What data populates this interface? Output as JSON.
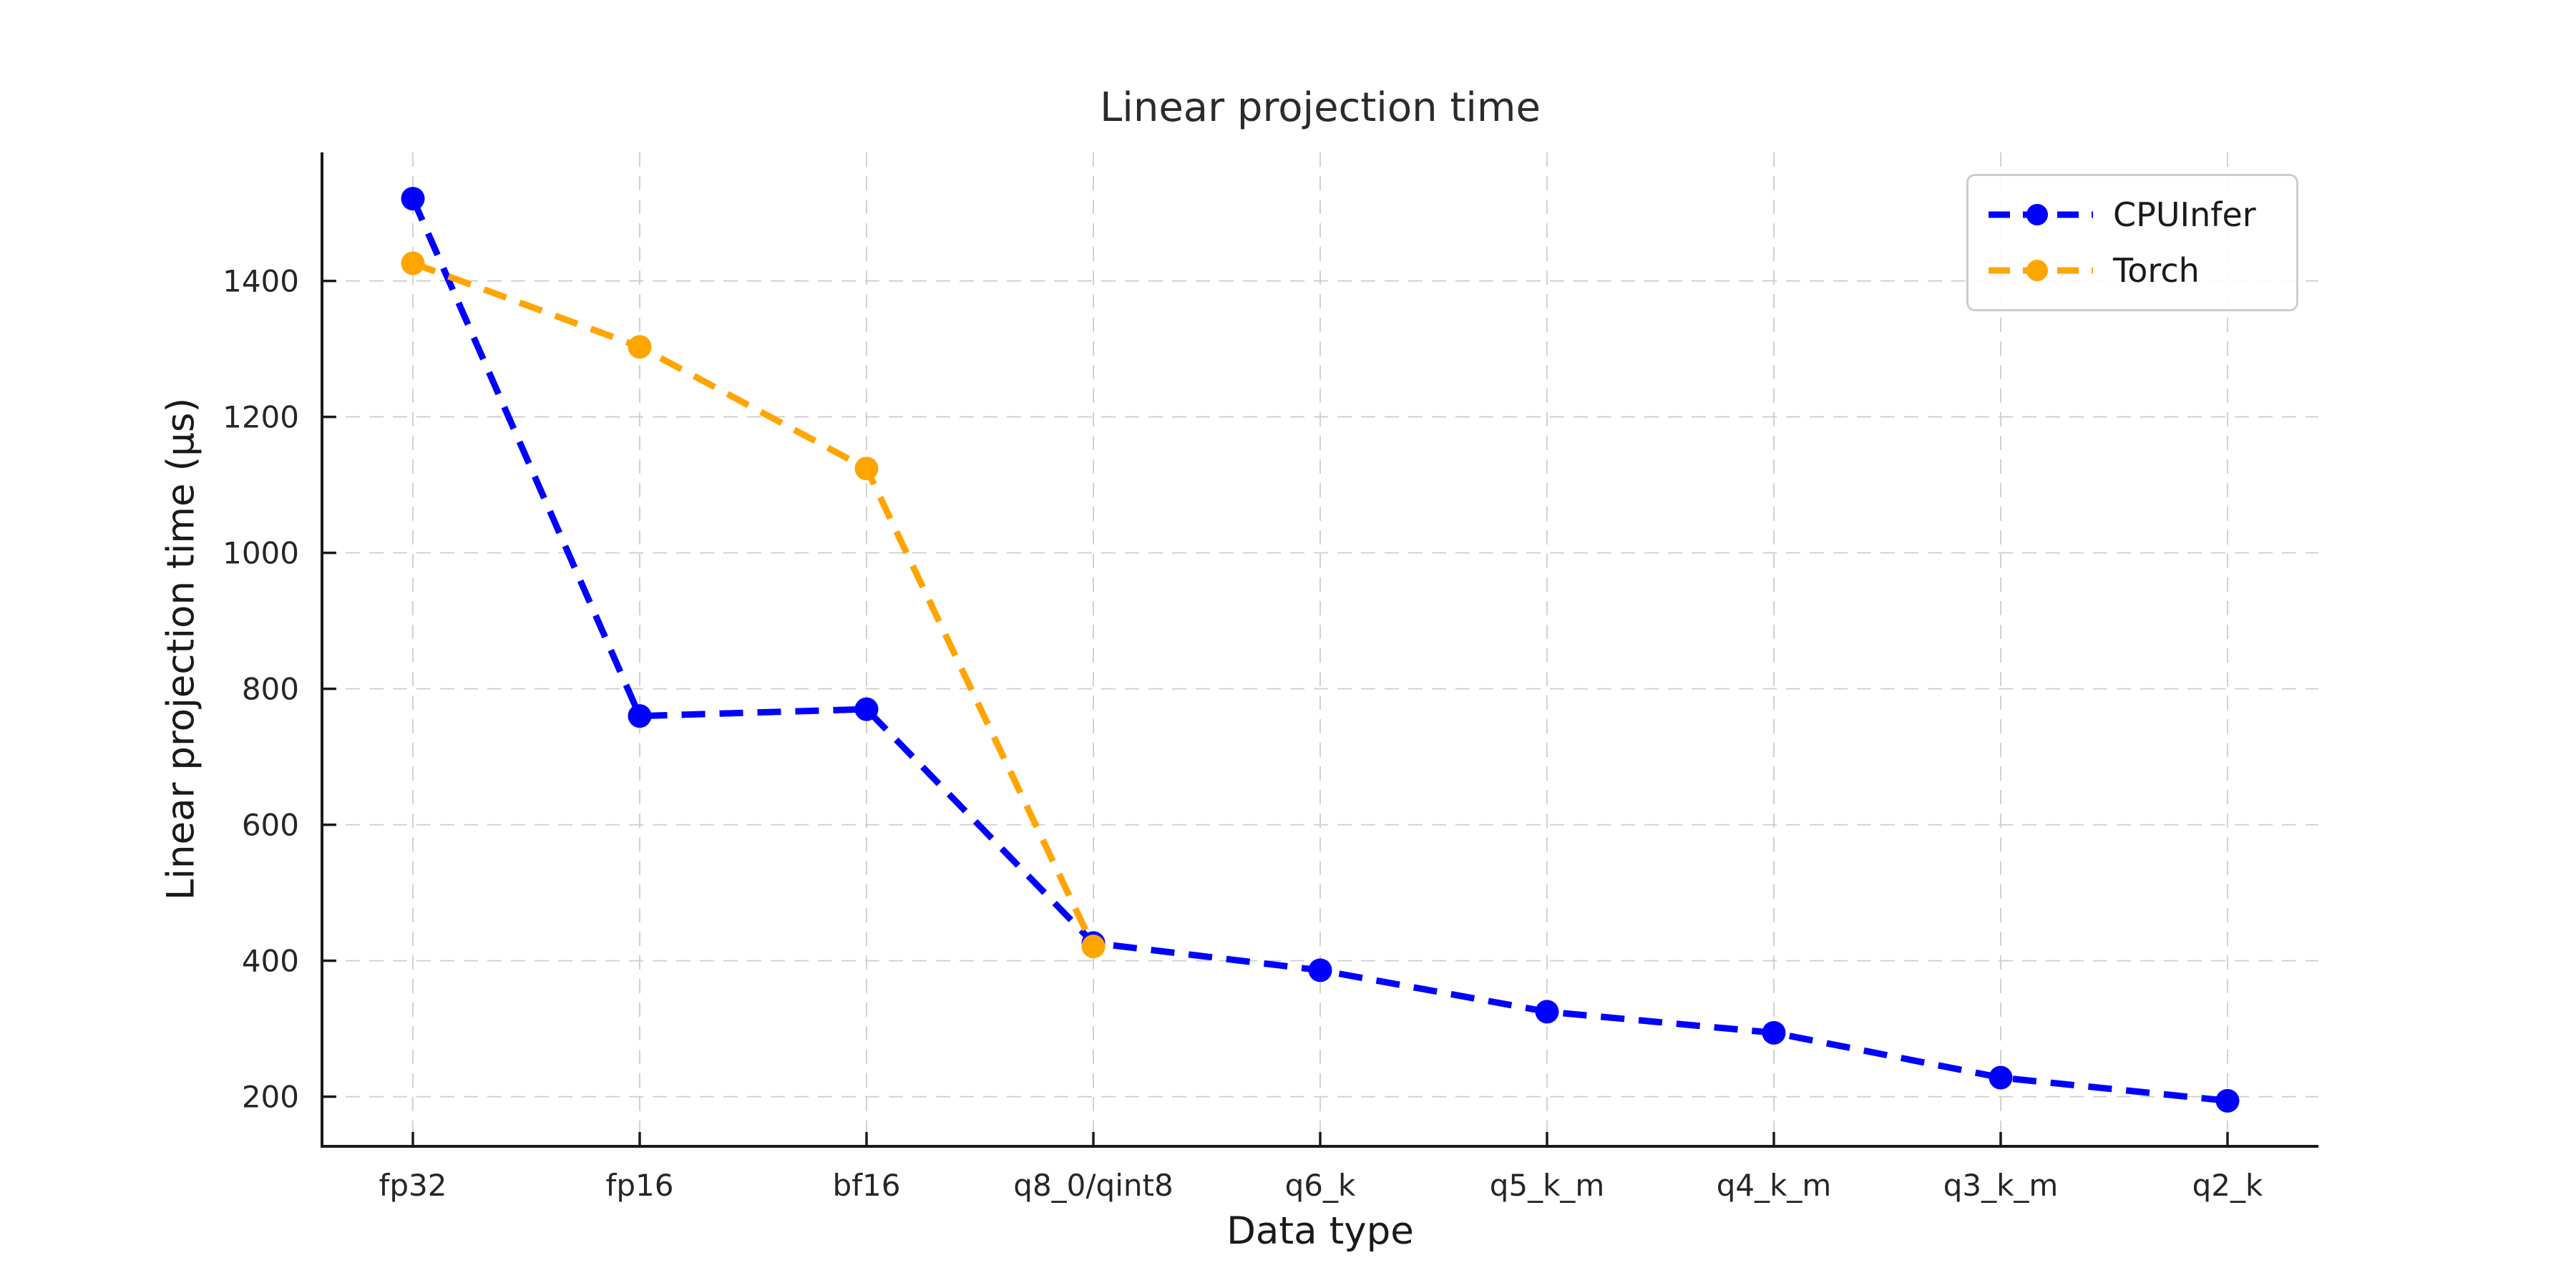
{
  "title": "Linear projection time",
  "chart_data": {
    "type": "line",
    "title": "Linear projection time",
    "xlabel": "Data type",
    "ylabel": "Linear projection time (μs)",
    "categories": [
      "fp32",
      "fp16",
      "bf16",
      "q8_0/qint8",
      "q6_k",
      "q5_k_m",
      "q4_k_m",
      "q3_k_m",
      "q2_k"
    ],
    "series": [
      {
        "name": "CPUInfer",
        "color": "#0000ff",
        "values": [
          1521,
          760,
          770,
          426,
          386,
          325,
          294,
          228,
          194
        ]
      },
      {
        "name": "Torch",
        "color": "#ffa500",
        "values": [
          1426,
          1303,
          1124,
          421
        ]
      }
    ],
    "yticks": [
      200,
      400,
      600,
      800,
      1000,
      1200,
      1400
    ],
    "ylim": [
      127,
      1589
    ],
    "grid": true,
    "grid_style": "dashed",
    "line_style": "dashed",
    "marker": "circle",
    "legend_position": "upper right"
  },
  "colors": {
    "cpuinfer": "#0000ff",
    "torch": "#ffa500",
    "grid": "#cccccc",
    "spine": "#1a1a1a",
    "text": "#1a1a1a"
  }
}
